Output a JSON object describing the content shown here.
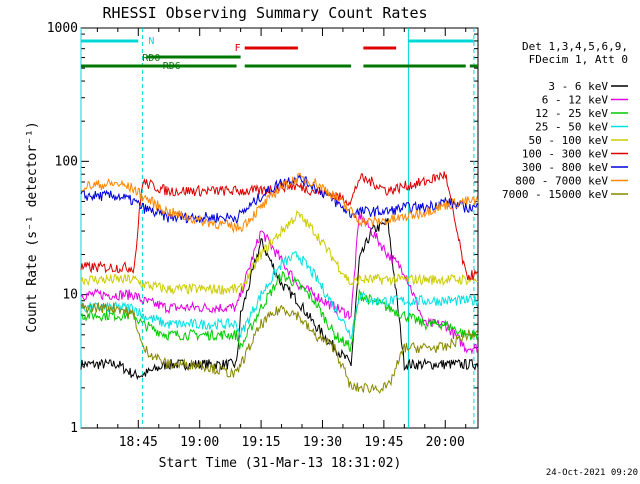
{
  "chart_data": {
    "type": "line",
    "title": "RHESSI Observing Summary Count Rates",
    "xlabel": "Start Time (31-Mar-13 18:31:02)",
    "ylabel": "Count Rate (s⁻¹ detector⁻¹)",
    "yscale": "log",
    "ylim": [
      1,
      1000
    ],
    "xlim": [
      "18:31",
      "20:08"
    ],
    "xticks": [
      "18:45",
      "19:00",
      "19:15",
      "19:30",
      "19:45",
      "20:00"
    ],
    "yticks": [
      "1",
      "10",
      "100",
      "1000"
    ],
    "footer": "24-Oct-2021 09:20",
    "legend": {
      "placement": "right",
      "header": [
        "Det 1,3,4,5,6,9,",
        "FDecim 1, Att 0"
      ]
    },
    "flags": [
      {
        "label": "N",
        "color": "#00d8d8",
        "segments": [
          [
            "18:31",
            "18:45"
          ],
          [
            "19:51",
            "20:07"
          ]
        ]
      },
      {
        "label": "RD0",
        "color": "#007700",
        "segments": [
          [
            "18:47",
            "19:10"
          ]
        ]
      },
      {
        "label": "F",
        "color": "#dd0000",
        "segments": [
          [
            "19:11",
            "19:24"
          ],
          [
            "19:40",
            "19:48"
          ]
        ]
      },
      {
        "label": "RD6",
        "color": "#007700",
        "segments": [
          [
            "18:31",
            "19:09"
          ],
          [
            "19:11",
            "19:37"
          ],
          [
            "19:40",
            "20:05"
          ],
          [
            "20:06",
            "20:08"
          ]
        ]
      }
    ],
    "vlines": [
      {
        "t": "18:31",
        "color": "#00d8d8",
        "style": "solid"
      },
      {
        "t": "18:46",
        "color": "#00d8d8",
        "style": "dashed"
      },
      {
        "t": "19:51",
        "color": "#00d8d8",
        "style": "solid"
      },
      {
        "t": "20:07",
        "color": "#00d8d8",
        "style": "dashed"
      }
    ],
    "x_samples": [
      "18:31",
      "18:40",
      "18:44",
      "18:46",
      "18:52",
      "19:00",
      "19:09",
      "19:10",
      "19:15",
      "19:20",
      "19:24",
      "19:28",
      "19:33",
      "19:37",
      "19:39",
      "19:42",
      "19:46",
      "19:50",
      "19:55",
      "20:00",
      "20:05",
      "20:07"
    ],
    "series": [
      {
        "name": "3 - 6 keV",
        "color": "#000000",
        "values": [
          3,
          3,
          2.5,
          2.5,
          3,
          3,
          3,
          7,
          25,
          12,
          9,
          6,
          4,
          3,
          18,
          30,
          35,
          3,
          3,
          3,
          3,
          3
        ]
      },
      {
        "name": "6 - 12 keV",
        "color": "#e000e0",
        "values": [
          10,
          10,
          10,
          9,
          8,
          8,
          8,
          10,
          30,
          18,
          12,
          10,
          8,
          7,
          40,
          30,
          20,
          15,
          6,
          6,
          4,
          4
        ]
      },
      {
        "name": "12 - 25 keV",
        "color": "#00cc00",
        "values": [
          7,
          7,
          7,
          6,
          5,
          5,
          5,
          4,
          8,
          14,
          12,
          9,
          5,
          4,
          10,
          9,
          8,
          7,
          6,
          6,
          5,
          5
        ]
      },
      {
        "name": "25 - 50 keV",
        "color": "#00e0e0",
        "values": [
          8,
          8,
          8,
          7,
          6,
          6,
          6,
          5,
          10,
          17,
          20,
          14,
          8,
          5,
          10,
          9,
          9,
          9,
          9,
          9,
          9,
          9
        ]
      },
      {
        "name": "50 - 100 keV",
        "color": "#cccc00",
        "values": [
          13,
          13,
          13,
          12,
          11,
          11,
          11,
          11,
          20,
          30,
          40,
          30,
          18,
          12,
          13,
          13,
          13,
          13,
          13,
          13,
          13,
          13
        ]
      },
      {
        "name": "100 - 300 keV",
        "color": "#dd0000",
        "values": [
          16,
          16,
          16,
          70,
          60,
          60,
          60,
          60,
          60,
          65,
          65,
          60,
          55,
          50,
          75,
          70,
          60,
          65,
          70,
          80,
          14,
          14
        ]
      },
      {
        "name": "300 - 800 keV",
        "color": "#0000dd",
        "values": [
          55,
          55,
          50,
          45,
          38,
          38,
          38,
          40,
          55,
          70,
          75,
          65,
          50,
          40,
          42,
          42,
          42,
          45,
          45,
          50,
          45,
          45
        ]
      },
      {
        "name": "800 - 7000 keV",
        "color": "#ff8800",
        "values": [
          65,
          68,
          62,
          55,
          42,
          36,
          32,
          32,
          45,
          65,
          75,
          70,
          55,
          42,
          36,
          35,
          36,
          38,
          42,
          47,
          50,
          50
        ]
      },
      {
        "name": "7000 - 15000 keV",
        "color": "#888800",
        "values": [
          8,
          8,
          7,
          4,
          3,
          3,
          2.5,
          3,
          6,
          8,
          7,
          5,
          4,
          2,
          2,
          2,
          2,
          4,
          4,
          4,
          5,
          5
        ]
      }
    ]
  }
}
